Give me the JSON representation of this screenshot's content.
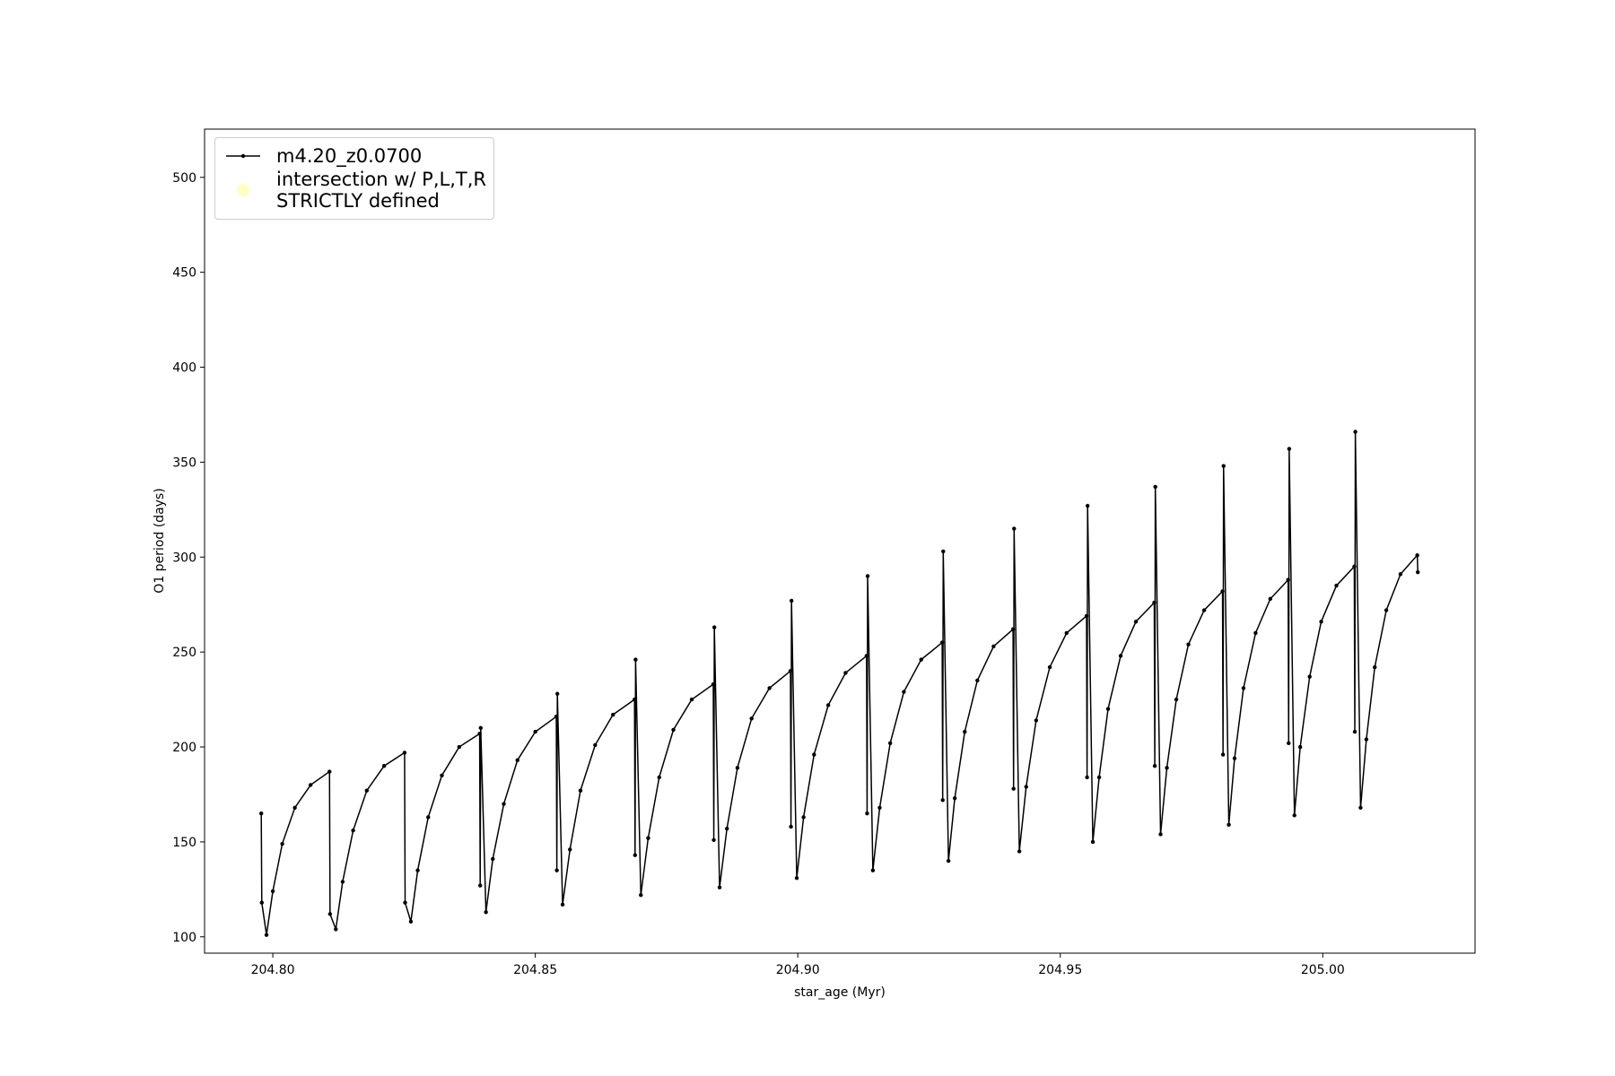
{
  "chart_data": {
    "type": "line",
    "xlabel": "star_age (Myr)",
    "ylabel": "O1 period (days)",
    "xlim": [
      204.787,
      205.029
    ],
    "ylim": [
      91.4,
      525.4
    ],
    "xticks": [
      {
        "value": 204.8,
        "label": "204.80"
      },
      {
        "value": 204.85,
        "label": "204.85"
      },
      {
        "value": 204.9,
        "label": "204.90"
      },
      {
        "value": 204.95,
        "label": "204.95"
      },
      {
        "value": 205.0,
        "label": "205.00"
      }
    ],
    "yticks": [
      100,
      150,
      200,
      250,
      300,
      350,
      400,
      450,
      500
    ],
    "legend": "upper left",
    "series": [
      {
        "name": "m4.20_z0.0700",
        "color": "#000000",
        "x": [
          204.7978,
          204.7979,
          204.7988,
          204.8,
          204.8018,
          204.8042,
          204.8072,
          204.8108,
          204.8109,
          204.812,
          204.8133,
          204.8153,
          204.8179,
          204.8212,
          204.8251,
          204.8252,
          204.8263,
          204.8276,
          204.8296,
          204.8322,
          204.8355,
          204.8394,
          204.8395,
          204.8396,
          204.8406,
          204.8419,
          204.844,
          204.8466,
          204.85,
          204.854,
          204.8541,
          204.8542,
          204.8552,
          204.8566,
          204.8586,
          204.8614,
          204.8648,
          204.8689,
          204.869,
          204.8691,
          204.8701,
          204.8715,
          204.8736,
          204.8763,
          204.8798,
          204.8839,
          204.884,
          204.8841,
          204.8851,
          204.8865,
          204.8885,
          204.8912,
          204.8946,
          204.8986,
          204.8987,
          204.8988,
          204.8998,
          204.9011,
          204.9031,
          204.9058,
          204.9091,
          204.9131,
          204.9132,
          204.9133,
          204.9143,
          204.9156,
          204.9176,
          204.9202,
          204.9235,
          204.9275,
          204.9276,
          204.9277,
          204.9287,
          204.9299,
          204.9318,
          204.9342,
          204.9373,
          204.941,
          204.9411,
          204.9412,
          204.9422,
          204.9435,
          204.9454,
          204.948,
          204.9512,
          204.955,
          204.9551,
          204.9552,
          204.9562,
          204.9574,
          204.9591,
          204.9615,
          204.9644,
          204.9679,
          204.968,
          204.9681,
          204.9691,
          204.9703,
          204.9721,
          204.9744,
          204.9774,
          204.9809,
          204.981,
          204.9811,
          204.9821,
          204.9832,
          204.9849,
          204.9872,
          204.99,
          204.9934,
          204.9935,
          204.9936,
          204.9946,
          204.9957,
          204.9975,
          204.9997,
          205.0026,
          205.006,
          205.0061,
          205.0062,
          205.0072,
          205.0083,
          205.0099,
          205.0121,
          205.0148,
          205.018,
          205.0181
        ],
        "values": [
          165,
          118,
          101,
          124,
          149,
          168,
          180,
          187,
          112,
          104,
          129,
          156,
          177,
          190,
          197,
          118,
          108,
          135,
          163,
          185,
          200,
          207,
          127,
          210,
          113,
          141,
          170,
          193,
          208,
          216,
          135,
          228,
          117,
          146,
          177,
          201,
          217,
          225,
          143,
          246,
          122,
          152,
          184,
          209,
          225,
          233,
          151,
          263,
          126,
          157,
          189,
          215,
          231,
          240,
          158,
          277,
          131,
          163,
          196,
          222,
          239,
          248,
          165,
          290,
          135,
          168,
          202,
          229,
          246,
          255,
          172,
          303,
          140,
          173,
          208,
          235,
          253,
          262,
          178,
          315,
          145,
          179,
          214,
          242,
          260,
          269,
          184,
          327,
          150,
          184,
          220,
          248,
          266,
          276,
          190,
          337,
          154,
          189,
          225,
          254,
          272,
          282,
          196,
          348,
          159,
          194,
          231,
          260,
          278,
          288,
          202,
          357,
          164,
          200,
          237,
          266,
          285,
          295,
          208,
          366,
          168,
          204,
          242,
          272,
          291,
          301,
          292
        ]
      },
      {
        "name": "intersection w/ P,L,T,R\nSTRICTLY defined",
        "color": "#ffffb3",
        "x": [],
        "values": []
      }
    ]
  }
}
